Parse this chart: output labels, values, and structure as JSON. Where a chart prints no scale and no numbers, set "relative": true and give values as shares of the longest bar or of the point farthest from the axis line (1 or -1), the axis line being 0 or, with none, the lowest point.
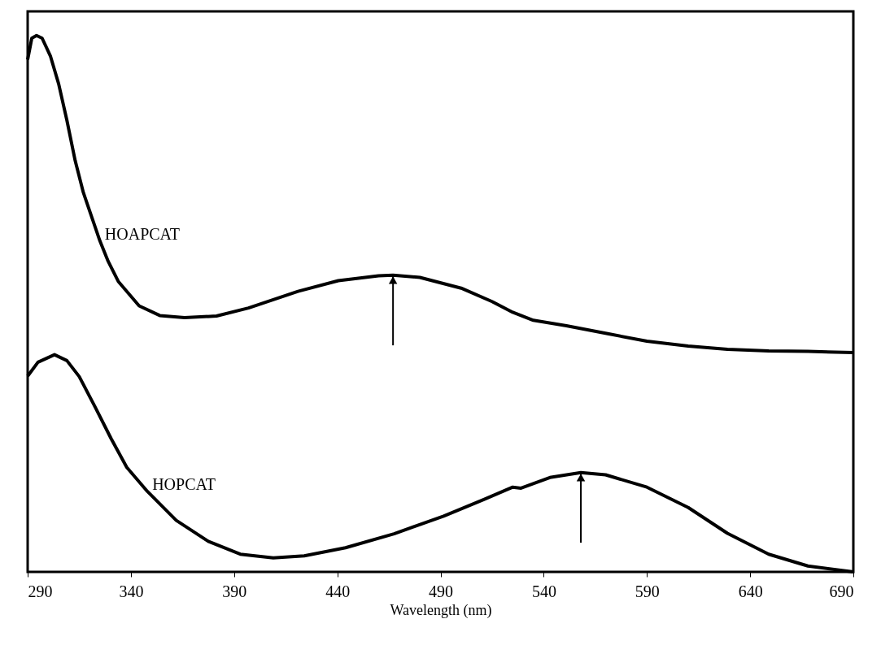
{
  "chart_data": {
    "type": "line",
    "xlabel": "Wavelength (nm)",
    "relative": true,
    "tick_labels": "x",
    "grid": false,
    "legend": false,
    "marker": "none",
    "line_style": "solid",
    "xlim": [
      290,
      690
    ],
    "xticks": [
      290,
      340,
      390,
      440,
      490,
      540,
      590,
      640,
      690
    ],
    "series": [
      {
        "name": "HOAPCAT",
        "color": "#000000",
        "x": [
          290,
          292,
          294.3,
          297,
          301,
          305,
          309,
          313,
          317,
          321,
          325,
          329,
          334,
          344,
          354,
          366,
          381.5,
          397,
          421,
          440.5,
          460,
          467,
          480,
          500,
          515,
          525,
          535,
          551,
          571,
          590,
          610,
          629,
          649,
          668,
          690
        ],
        "values": [
          0.955,
          0.995,
          1.0,
          0.995,
          0.962,
          0.91,
          0.842,
          0.767,
          0.707,
          0.662,
          0.617,
          0.579,
          0.541,
          0.496,
          0.478,
          0.474,
          0.477,
          0.492,
          0.523,
          0.543,
          0.552,
          0.553,
          0.549,
          0.529,
          0.504,
          0.484,
          0.469,
          0.459,
          0.444,
          0.43,
          0.421,
          0.415,
          0.412,
          0.411,
          0.409
        ]
      },
      {
        "name": "HOPCAT",
        "color": "#000000",
        "x": [
          290,
          295,
          303,
          309,
          315,
          322.6,
          330.5,
          338,
          348,
          362,
          377.5,
          393,
          409,
          424,
          444,
          467.5,
          491.5,
          511,
          525,
          529,
          543,
          558,
          570,
          590,
          610,
          629,
          649,
          668,
          690
        ],
        "values": [
          0.365,
          0.391,
          0.405,
          0.394,
          0.364,
          0.308,
          0.248,
          0.195,
          0.15,
          0.096,
          0.057,
          0.033,
          0.026,
          0.03,
          0.045,
          0.071,
          0.104,
          0.135,
          0.158,
          0.156,
          0.176,
          0.185,
          0.181,
          0.158,
          0.12,
          0.072,
          0.033,
          0.011,
          0.0
        ]
      }
    ]
  }
}
